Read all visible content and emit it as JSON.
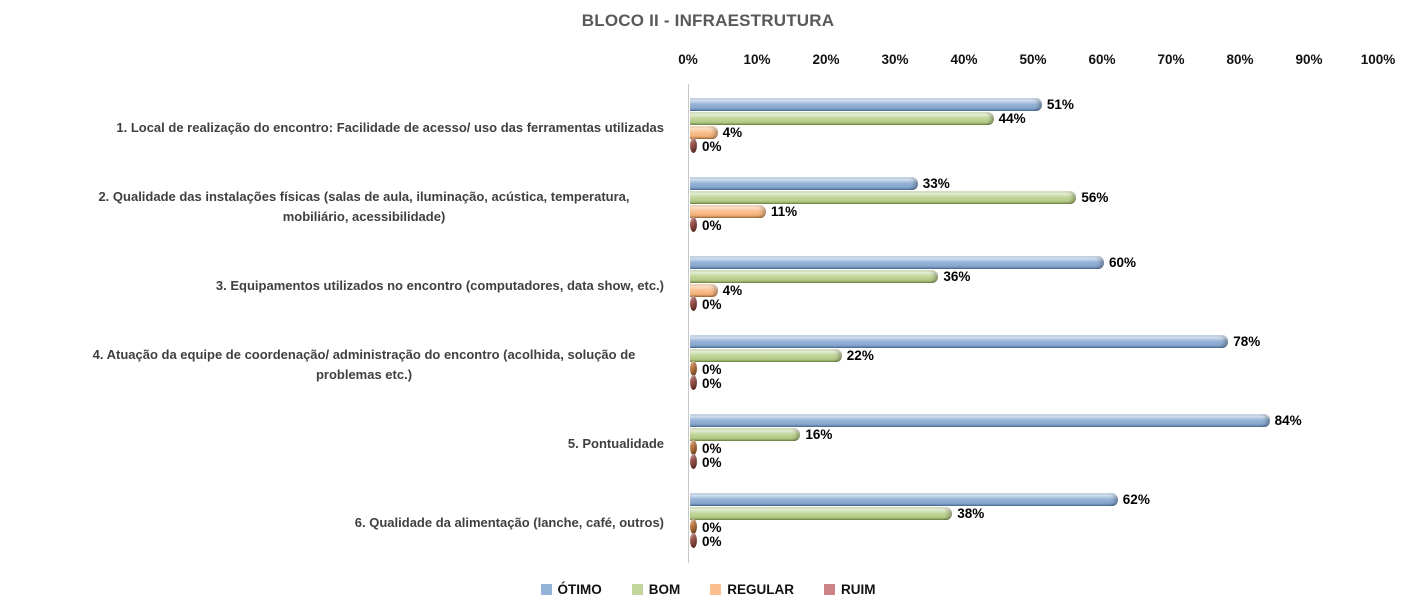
{
  "chart_data": {
    "type": "bar",
    "orientation": "horizontal",
    "title": "BLOCO II - INFRAESTRUTURA",
    "title_color": "#595959",
    "category_label_color": "#404040",
    "categories": [
      "1. Local de realização do encontro: Facilidade de acesso/ uso das ferramentas utilizadas",
      "2. Qualidade das instalações físicas (salas de aula, iluminação, acústica, temperatura, mobiliário, acessibilidade)",
      "3. Equipamentos utilizados no encontro (computadores, data show, etc.)",
      "4. Atuação da equipe de coordenação/ administração do encontro (acolhida, solução de problemas etc.)",
      "5. Pontualidade",
      "6. Qualidade da alimentação (lanche, café, outros)"
    ],
    "series": [
      {
        "name": "ÓTIMO",
        "key": "otimo",
        "color": "#95B3D7",
        "values": [
          51,
          33,
          60,
          78,
          84,
          62
        ]
      },
      {
        "name": "BOM",
        "key": "bom",
        "color": "#C3D69B",
        "values": [
          44,
          56,
          36,
          22,
          16,
          38
        ]
      },
      {
        "name": "REGULAR",
        "key": "regular",
        "color": "#FAC090",
        "values": [
          4,
          11,
          4,
          0,
          0,
          0
        ]
      },
      {
        "name": "RUIM",
        "key": "ruim",
        "color": "#CD8486",
        "values": [
          0,
          0,
          0,
          0,
          0,
          0
        ]
      }
    ],
    "x_axis": {
      "tick_labels": [
        "0%",
        "10%",
        "20%",
        "30%",
        "40%",
        "50%",
        "60%",
        "70%",
        "80%",
        "90%",
        "100%"
      ],
      "min": 0,
      "max": 100
    },
    "value_suffix": "%",
    "grid": false,
    "legend_position": "bottom"
  }
}
